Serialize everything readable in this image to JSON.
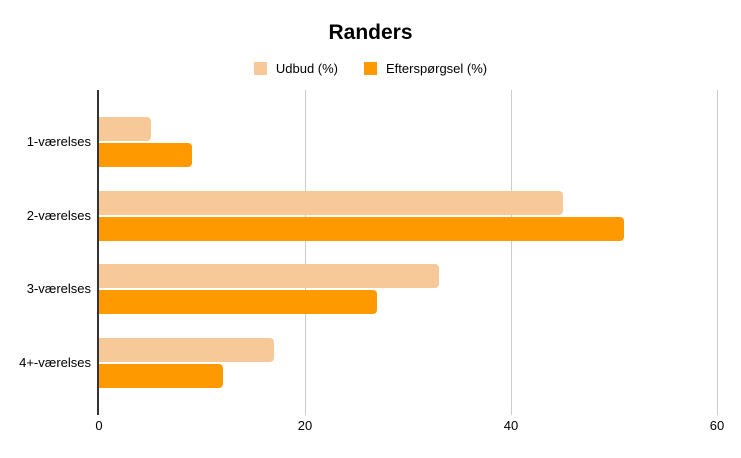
{
  "chart_data": {
    "type": "bar",
    "orientation": "horizontal",
    "title": "Randers",
    "categories": [
      "1-værelses",
      "2-værelses",
      "3-værelses",
      "4+-værelses"
    ],
    "series": [
      {
        "name": "Udbud (%)",
        "color": "#F7C998",
        "values": [
          5,
          45,
          33,
          17
        ]
      },
      {
        "name": "Efterspørgsel (%)",
        "color": "#FF9900",
        "values": [
          9,
          51,
          27,
          12
        ]
      }
    ],
    "xlabel": "",
    "ylabel": "",
    "xlim": [
      0,
      60
    ],
    "x_ticks": [
      0,
      20,
      40,
      60
    ],
    "grid": true,
    "legend_position": "top",
    "colors": {
      "axis_line": "#333333",
      "gridline": "#cccccc",
      "text": "#000000",
      "background": "#ffffff"
    }
  }
}
